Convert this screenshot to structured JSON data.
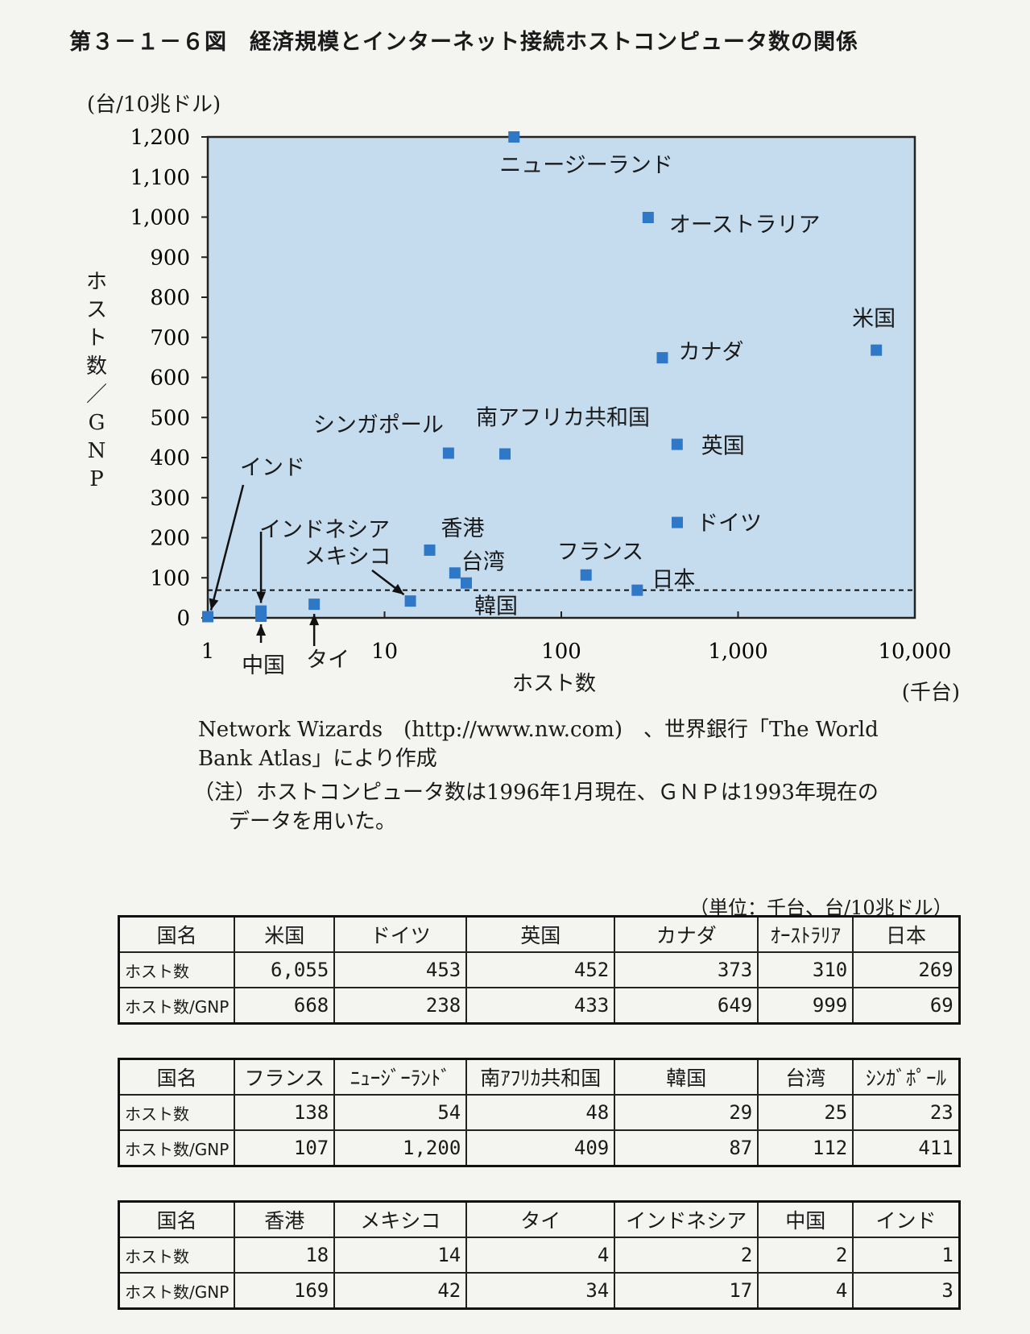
{
  "title": "第３－１－６図　経済規模とインターネット接続ホストコンピュータ数の関係",
  "chart_data": {
    "type": "scatter",
    "xscale": "log",
    "xlim": [
      1,
      10000
    ],
    "ylim": [
      0,
      1200
    ],
    "x_ticks": [
      1,
      10,
      100,
      1000,
      10000
    ],
    "x_tick_labels": [
      "1",
      "10",
      "100",
      "1,000",
      "10,000"
    ],
    "y_ticks": [
      0,
      100,
      200,
      300,
      400,
      500,
      600,
      700,
      800,
      900,
      1000,
      1100,
      1200
    ],
    "y_tick_labels": [
      "0",
      "100",
      "200",
      "300",
      "400",
      "500",
      "600",
      "700",
      "800",
      "900",
      "1,000",
      "1,100",
      "1,200"
    ],
    "y_unit_label": "(台/10兆ドル)",
    "ylabel": "ホスト数／GNP",
    "xlabel": "ホスト数",
    "x_unit_label": "(千台)",
    "reference_line_y": 69,
    "point_color": "#2f78c8",
    "plot_bg": "#c5dbee",
    "points": [
      {
        "label": "米国",
        "x": 6055,
        "y": 668
      },
      {
        "label": "ドイツ",
        "x": 453,
        "y": 238
      },
      {
        "label": "英国",
        "x": 452,
        "y": 433
      },
      {
        "label": "カナダ",
        "x": 373,
        "y": 649
      },
      {
        "label": "オーストラリア",
        "x": 310,
        "y": 999
      },
      {
        "label": "日本",
        "x": 269,
        "y": 69
      },
      {
        "label": "フランス",
        "x": 138,
        "y": 107
      },
      {
        "label": "ニュージーランド",
        "x": 54,
        "y": 1200
      },
      {
        "label": "南アフリカ共和国",
        "x": 48,
        "y": 409
      },
      {
        "label": "韓国",
        "x": 29,
        "y": 87
      },
      {
        "label": "台湾",
        "x": 25,
        "y": 112
      },
      {
        "label": "シンガポール",
        "x": 23,
        "y": 411
      },
      {
        "label": "香港",
        "x": 18,
        "y": 169
      },
      {
        "label": "メキシコ",
        "x": 14,
        "y": 42
      },
      {
        "label": "タイ",
        "x": 4,
        "y": 34
      },
      {
        "label": "インドネシア",
        "x": 2,
        "y": 17
      },
      {
        "label": "中国",
        "x": 2,
        "y": 4
      },
      {
        "label": "インド",
        "x": 1,
        "y": 3
      }
    ]
  },
  "notes": {
    "source_line1": "Network Wizards　(http://www.nw.com)　、世界銀行「The World",
    "source_line2": "Bank Atlas」により作成",
    "note_line1": "（注）ホストコンピュータ数は1996年1月現在、ＧＮＰは1993年現在の",
    "note_line2": "データを用いた。"
  },
  "tables": {
    "unit": "（単位：千台、台/10兆ドル）",
    "row_labels": [
      "国名",
      "ホスト数",
      "ホスト数/GNP"
    ],
    "t1": {
      "countries": [
        "米国",
        "ドイツ",
        "英国",
        "カナダ",
        "ｵｰｽﾄﾗﾘｱ",
        "日本"
      ],
      "hosts": [
        "6,055",
        "453",
        "452",
        "373",
        "310",
        "269"
      ],
      "ratio": [
        "668",
        "238",
        "433",
        "649",
        "999",
        "69"
      ]
    },
    "t2": {
      "countries": [
        "フランス",
        "ﾆｭｰｼﾞｰﾗﾝﾄﾞ",
        "南ｱﾌﾘｶ共和国",
        "韓国",
        "台湾",
        "ｼﾝｶﾞﾎﾟｰﾙ"
      ],
      "hosts": [
        "138",
        "54",
        "48",
        "29",
        "25",
        "23"
      ],
      "ratio": [
        "107",
        "1,200",
        "409",
        "87",
        "112",
        "411"
      ]
    },
    "t3": {
      "countries": [
        "香港",
        "メキシコ",
        "タイ",
        "インドネシア",
        "中国",
        "インド"
      ],
      "hosts": [
        "18",
        "14",
        "4",
        "2",
        "2",
        "1"
      ],
      "ratio": [
        "169",
        "42",
        "34",
        "17",
        "4",
        "3"
      ]
    }
  }
}
